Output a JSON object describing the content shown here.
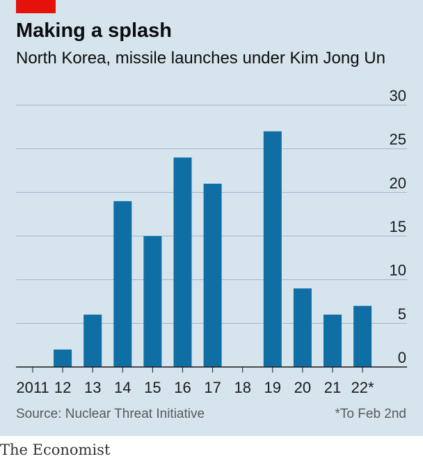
{
  "header": {
    "title": "Making a splash",
    "subtitle": "North Korea, missile launches under Kim Jong Un"
  },
  "footer": {
    "source": "Source: Nuclear Threat Initiative",
    "footnote": "*To Feb 2nd",
    "brand": "The Economist"
  },
  "colors": {
    "bar": "#0f6ea3",
    "background": "#d6e4ee",
    "accent": "#e3120b",
    "grid": "#9fb5c4"
  },
  "chart_data": {
    "type": "bar",
    "title": "Making a splash",
    "subtitle": "North Korea, missile launches under Kim Jong Un",
    "categories": [
      "2011",
      "12",
      "13",
      "14",
      "15",
      "16",
      "17",
      "18",
      "19",
      "20",
      "21",
      "22*"
    ],
    "values": [
      0,
      2,
      6,
      19,
      15,
      24,
      21,
      0,
      27,
      9,
      6,
      7
    ],
    "ylim": [
      0,
      30
    ],
    "yticks": [
      0,
      5,
      10,
      15,
      20,
      25,
      30
    ],
    "grid": true,
    "y_axis_side": "right",
    "xlabel": "",
    "ylabel": ""
  }
}
